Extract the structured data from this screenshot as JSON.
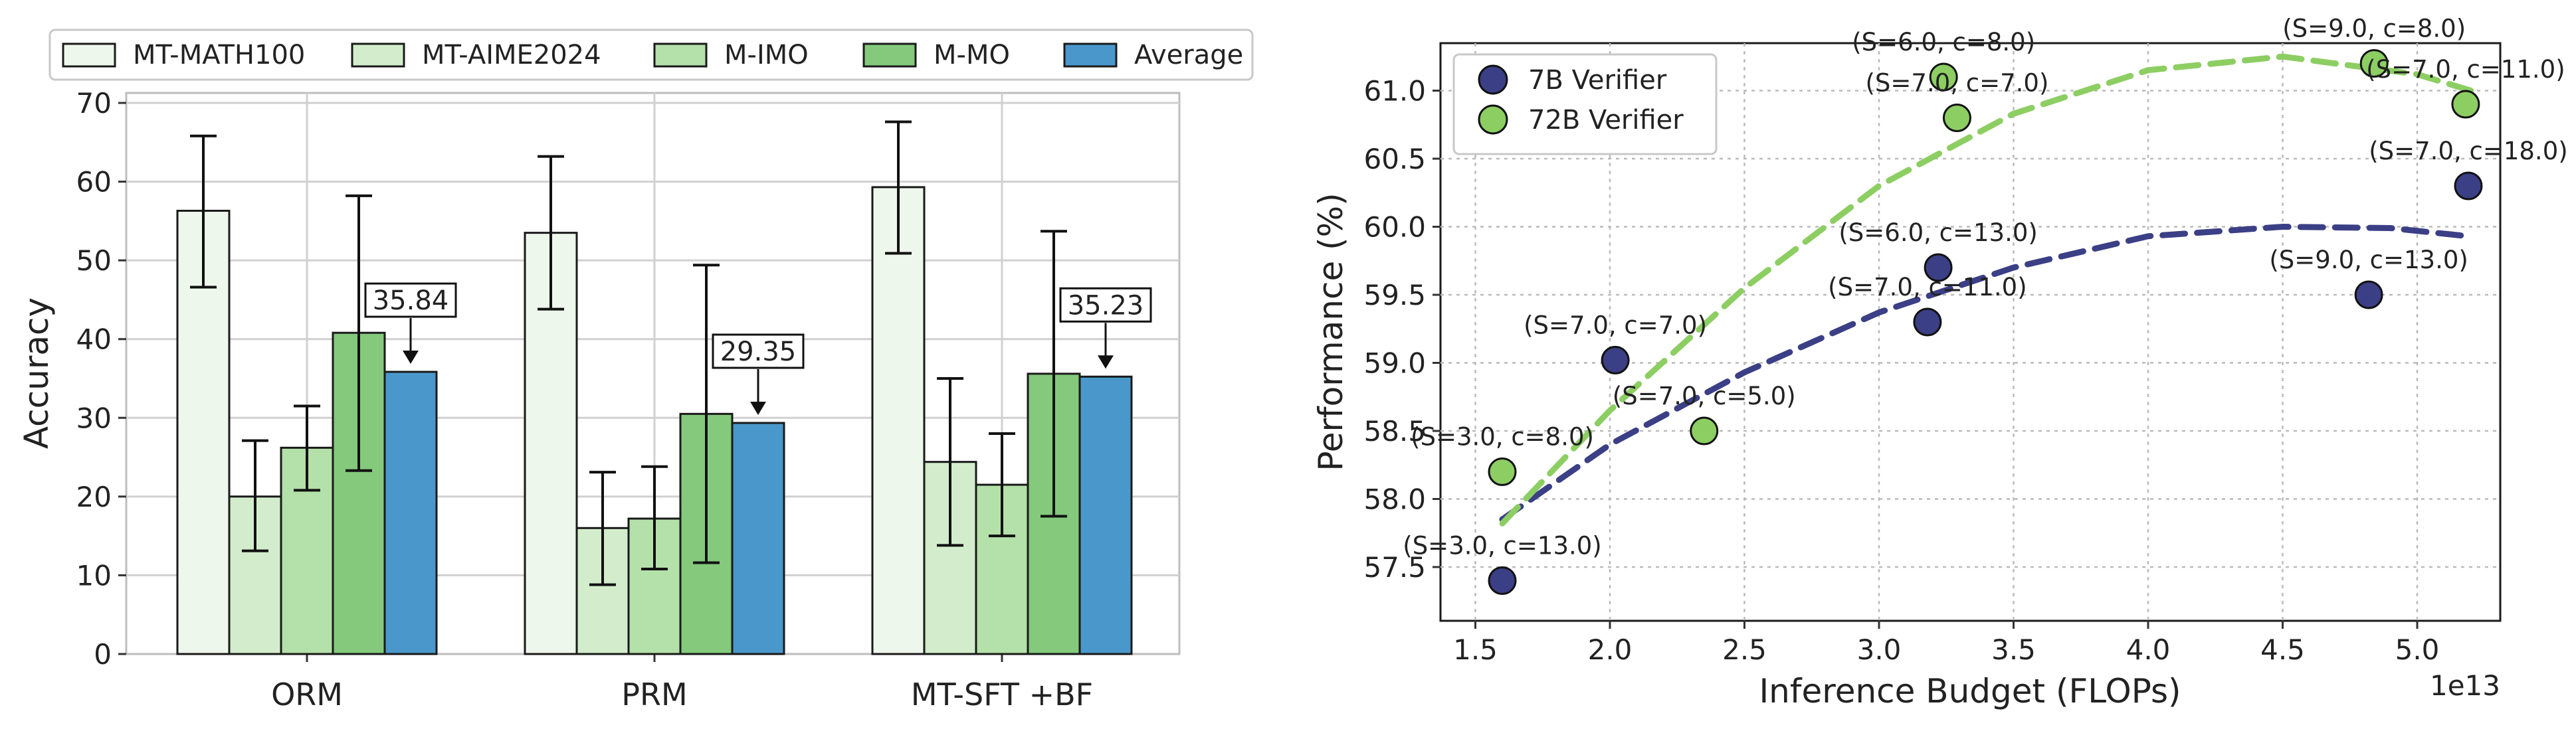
{
  "colors": {
    "MT-MATH100": "#eef7ec",
    "MT-AIME2024": "#d3edcc",
    "M-IMO": "#b4e0a9",
    "M-MO": "#84c97c",
    "Average": "#4a98cb",
    "7B Verifier": "#3b3f85",
    "72B Verifier": "#8dce63",
    "grid": "#d0d0d0",
    "edge": "#1a1a1a"
  },
  "chart_data": [
    {
      "type": "bar",
      "categories": [
        "ORM",
        "PRM",
        "MT-SFT +BF"
      ],
      "series": [
        {
          "name": "MT-MATH100",
          "values": [
            56.3,
            53.5,
            59.3
          ],
          "err_low": [
            46.6,
            43.8,
            50.9
          ],
          "err_high": [
            65.8,
            63.2,
            67.6
          ]
        },
        {
          "name": "MT-AIME2024",
          "values": [
            20.0,
            16.0,
            24.4
          ],
          "err_low": [
            13.1,
            8.8,
            13.8
          ],
          "err_high": [
            27.1,
            23.1,
            35.0
          ]
        },
        {
          "name": "M-IMO",
          "values": [
            26.2,
            17.2,
            21.5
          ],
          "err_low": [
            20.8,
            10.8,
            15.0
          ],
          "err_high": [
            31.5,
            23.8,
            28.0
          ]
        },
        {
          "name": "M-MO",
          "values": [
            40.8,
            30.5,
            35.6
          ],
          "err_low": [
            23.3,
            11.6,
            17.5
          ],
          "err_high": [
            58.2,
            49.4,
            53.7
          ]
        },
        {
          "name": "Average",
          "values": [
            35.84,
            29.35,
            35.23
          ]
        }
      ],
      "annotations": [
        "35.84",
        "29.35",
        "35.23"
      ],
      "ylabel": "Accuracy",
      "xlabel": "",
      "ylim": [
        0,
        70
      ],
      "yticks": [
        0,
        10,
        20,
        30,
        40,
        50,
        60,
        70
      ],
      "grid": true,
      "legend": "top-outside"
    },
    {
      "type": "scatter",
      "series": [
        {
          "name": "7B Verifier",
          "points": [
            {
              "x": 1.6,
              "y": 57.4,
              "label": "(S=3.0, c=13.0)"
            },
            {
              "x": 2.02,
              "y": 59.02,
              "label": "(S=7.0, c=7.0)"
            },
            {
              "x": 3.18,
              "y": 59.3,
              "label": "(S=7.0, c=11.0)"
            },
            {
              "x": 3.22,
              "y": 59.7,
              "label": "(S=6.0, c=13.0)"
            },
            {
              "x": 4.82,
              "y": 59.5,
              "label": "(S=9.0, c=13.0)"
            },
            {
              "x": 5.19,
              "y": 60.3,
              "label": "(S=7.0, c=18.0)"
            }
          ],
          "trend": [
            [
              1.6,
              57.85
            ],
            [
              2.0,
              58.4
            ],
            [
              2.5,
              58.93
            ],
            [
              3.0,
              59.37
            ],
            [
              3.5,
              59.7
            ],
            [
              4.0,
              59.93
            ],
            [
              4.5,
              60.0
            ],
            [
              4.9,
              59.99
            ],
            [
              5.19,
              59.93
            ]
          ]
        },
        {
          "name": "72B Verifier",
          "points": [
            {
              "x": 1.6,
              "y": 58.2,
              "label": "(S=3.0, c=8.0)"
            },
            {
              "x": 2.35,
              "y": 58.5,
              "label": "(S=7.0, c=5.0)"
            },
            {
              "x": 3.24,
              "y": 61.1,
              "label": "(S=6.0, c=8.0)"
            },
            {
              "x": 3.29,
              "y": 60.8,
              "label": "(S=7.0, c=7.0)"
            },
            {
              "x": 4.84,
              "y": 61.2,
              "label": "(S=9.0, c=8.0)"
            },
            {
              "x": 5.18,
              "y": 60.9,
              "label": "(S=7.0, c=11.0)"
            }
          ],
          "trend": [
            [
              1.6,
              57.82
            ],
            [
              2.0,
              58.65
            ],
            [
              2.5,
              59.55
            ],
            [
              3.0,
              60.3
            ],
            [
              3.5,
              60.83
            ],
            [
              4.0,
              61.15
            ],
            [
              4.5,
              61.25
            ],
            [
              5.0,
              61.12
            ],
            [
              5.2,
              61.0
            ]
          ]
        }
      ],
      "xlabel": "Inference Budget (FLOPs)",
      "ylabel": "Performance (%)",
      "x_multiplier": "1e13",
      "xlim": [
        1.4,
        5.35
      ],
      "ylim": [
        57.3,
        61.45
      ],
      "xticks": [
        "1.5",
        "2.0",
        "2.5",
        "3.0",
        "3.5",
        "4.0",
        "4.5",
        "5.0"
      ],
      "yticks": [
        "57.5",
        "58.0",
        "58.5",
        "59.0",
        "59.5",
        "60.0",
        "60.5",
        "61.0"
      ],
      "grid": true,
      "legend": "top-left"
    }
  ]
}
